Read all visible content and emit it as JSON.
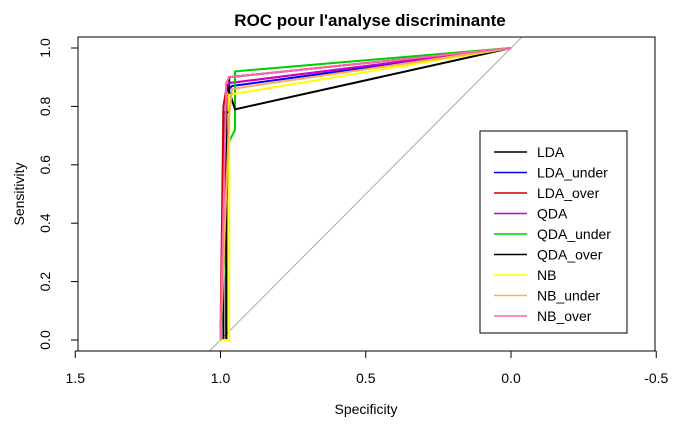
{
  "chart_data": {
    "type": "line",
    "title": "ROC pour l'analyse discriminante",
    "xlabel": "Specificity",
    "ylabel": "Sensitivity",
    "xlim": [
      1.5,
      -0.5
    ],
    "ylim": [
      0.0,
      1.0
    ],
    "x_reversed": true,
    "x_ticks": [
      1.5,
      1.0,
      0.5,
      0.0,
      -0.5
    ],
    "x_tick_labels": [
      "1.5",
      "1.0",
      "0.5",
      "0.0",
      "-0.5"
    ],
    "y_ticks": [
      0.0,
      0.2,
      0.4,
      0.6,
      0.8,
      1.0
    ],
    "y_tick_labels": [
      "0.0",
      "0.2",
      "0.4",
      "0.6",
      "0.8",
      "1.0"
    ],
    "grid": false,
    "legend_position": "right",
    "reference_line": {
      "x": [
        1.0,
        0.0
      ],
      "y": [
        0.0,
        1.0
      ],
      "color": "#aaaaaa"
    },
    "series": [
      {
        "name": "LDA",
        "color": "#000000",
        "x": [
          1.0,
          0.99,
          0.99,
          0.97,
          0.97,
          0.0
        ],
        "y": [
          0.0,
          0.0,
          0.78,
          0.78,
          0.9,
          1.0
        ]
      },
      {
        "name": "LDA_under",
        "color": "#0000ff",
        "x": [
          1.0,
          0.98,
          0.98,
          0.96,
          0.0
        ],
        "y": [
          0.0,
          0.0,
          0.85,
          0.87,
          1.0
        ]
      },
      {
        "name": "LDA_over",
        "color": "#cc0000",
        "x": [
          1.0,
          0.99,
          0.98,
          0.97,
          0.0
        ],
        "y": [
          0.0,
          0.8,
          0.86,
          0.88,
          1.0
        ]
      },
      {
        "name": "QDA",
        "color": "#cc00cc",
        "x": [
          1.0,
          0.98,
          0.97,
          0.0
        ],
        "y": [
          0.0,
          0.86,
          0.88,
          1.0
        ]
      },
      {
        "name": "QDA_under",
        "color": "#00cc00",
        "x": [
          1.0,
          0.97,
          0.95,
          0.95,
          0.0
        ],
        "y": [
          0.0,
          0.68,
          0.72,
          0.92,
          1.0
        ]
      },
      {
        "name": "QDA_over",
        "color": "#000000",
        "x": [
          1.0,
          0.98,
          0.98,
          0.95,
          0.0
        ],
        "y": [
          0.0,
          0.0,
          0.88,
          0.79,
          1.0
        ]
      },
      {
        "name": "NB",
        "color": "#ffff00",
        "x": [
          1.0,
          0.97,
          0.97,
          0.0
        ],
        "y": [
          0.0,
          0.0,
          0.84,
          1.0
        ]
      },
      {
        "name": "NB_under",
        "color": "#ffaa55",
        "x": [
          1.0,
          0.97,
          0.96,
          0.0
        ],
        "y": [
          0.0,
          0.77,
          0.86,
          1.0
        ]
      },
      {
        "name": "NB_over",
        "color": "#ff66aa",
        "x": [
          1.0,
          0.98,
          0.97,
          0.0
        ],
        "y": [
          0.0,
          0.88,
          0.9,
          1.0
        ]
      }
    ]
  }
}
